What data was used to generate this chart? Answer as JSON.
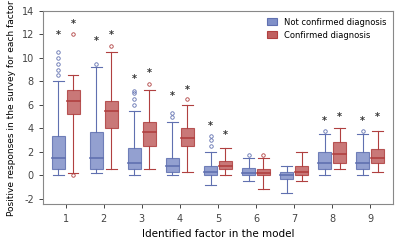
{
  "factors": [
    1,
    2,
    3,
    4,
    5,
    6,
    7,
    8,
    9
  ],
  "blue_boxes": [
    {
      "whislo": 0.0,
      "q1": 0.5,
      "med": 1.5,
      "q3": 3.3,
      "whishi": 8.0,
      "fliers_high": [
        8.5,
        9.0,
        9.5,
        10.0,
        10.5
      ],
      "fliers_low": []
    },
    {
      "whislo": 0.2,
      "q1": 0.5,
      "med": 1.5,
      "q3": 3.7,
      "whishi": 9.2,
      "fliers_high": [
        9.5
      ],
      "fliers_low": []
    },
    {
      "whislo": 0.0,
      "q1": 0.5,
      "med": 1.0,
      "q3": 2.3,
      "whishi": 5.5,
      "fliers_high": [
        6.0,
        6.5,
        7.0,
        7.2
      ],
      "fliers_low": []
    },
    {
      "whislo": 0.0,
      "q1": 0.3,
      "med": 0.8,
      "q3": 1.5,
      "whishi": 4.5,
      "fliers_high": [
        5.0,
        5.3
      ],
      "fliers_low": []
    },
    {
      "whislo": -0.8,
      "q1": 0.0,
      "med": 0.3,
      "q3": 0.8,
      "whishi": 2.0,
      "fliers_high": [
        2.5,
        3.0,
        3.3
      ],
      "fliers_low": []
    },
    {
      "whislo": -0.5,
      "q1": 0.0,
      "med": 0.2,
      "q3": 0.6,
      "whishi": 1.5,
      "fliers_high": [
        1.7
      ],
      "fliers_low": []
    },
    {
      "whislo": -1.5,
      "q1": -0.3,
      "med": 0.0,
      "q3": 0.3,
      "whishi": 0.8,
      "fliers_high": [],
      "fliers_low": []
    },
    {
      "whislo": 0.0,
      "q1": 0.5,
      "med": 1.0,
      "q3": 2.0,
      "whishi": 3.5,
      "fliers_high": [
        3.8
      ],
      "fliers_low": []
    },
    {
      "whislo": 0.0,
      "q1": 0.5,
      "med": 1.0,
      "q3": 2.0,
      "whishi": 3.5,
      "fliers_high": [
        3.8
      ],
      "fliers_low": []
    }
  ],
  "red_boxes": [
    {
      "whislo": 0.2,
      "q1": 5.2,
      "med": 6.3,
      "q3": 7.3,
      "whishi": 8.5,
      "fliers_high": [
        12.0
      ],
      "fliers_low": [
        0.0
      ]
    },
    {
      "whislo": 0.5,
      "q1": 4.0,
      "med": 5.5,
      "q3": 6.3,
      "whishi": 10.5,
      "fliers_high": [
        11.0
      ],
      "fliers_low": []
    },
    {
      "whislo": 0.5,
      "q1": 2.5,
      "med": 3.7,
      "q3": 4.5,
      "whishi": 7.3,
      "fliers_high": [
        7.8
      ],
      "fliers_low": []
    },
    {
      "whislo": 0.3,
      "q1": 2.5,
      "med": 3.2,
      "q3": 4.0,
      "whishi": 6.0,
      "fliers_high": [
        6.5
      ],
      "fliers_low": []
    },
    {
      "whislo": 0.0,
      "q1": 0.5,
      "med": 0.8,
      "q3": 1.2,
      "whishi": 2.3,
      "fliers_high": [],
      "fliers_low": []
    },
    {
      "whislo": -1.2,
      "q1": 0.0,
      "med": 0.2,
      "q3": 0.5,
      "whishi": 1.5,
      "fliers_high": [
        1.7
      ],
      "fliers_low": []
    },
    {
      "whislo": -0.5,
      "q1": 0.0,
      "med": 0.3,
      "q3": 0.8,
      "whishi": 2.0,
      "fliers_high": [],
      "fliers_low": []
    },
    {
      "whislo": 0.5,
      "q1": 1.0,
      "med": 1.8,
      "q3": 2.8,
      "whishi": 4.0,
      "fliers_high": [],
      "fliers_low": []
    },
    {
      "whislo": 0.3,
      "q1": 1.0,
      "med": 1.5,
      "q3": 2.2,
      "whishi": 3.8,
      "fliers_high": [],
      "fliers_low": []
    }
  ],
  "blue_color": "#6070b0",
  "red_color": "#b04040",
  "blue_face": "#8090c8",
  "red_face": "#c06060",
  "xlabel": "Identified factor in the model",
  "ylabel": "Positive responses in the survey for each factor",
  "ylim": [
    -2.5,
    14
  ],
  "yticks": [
    -2,
    0,
    2,
    4,
    6,
    8,
    10,
    12,
    14
  ],
  "legend_blue": "Not confirmed diagnosis",
  "legend_red": "Confirmed diagnosis",
  "star_positions_blue": [
    1,
    2,
    3,
    4,
    5,
    8,
    9
  ],
  "star_positions_red": [
    1,
    2,
    3,
    4,
    5,
    8,
    9
  ],
  "background_color": "#ffffff"
}
